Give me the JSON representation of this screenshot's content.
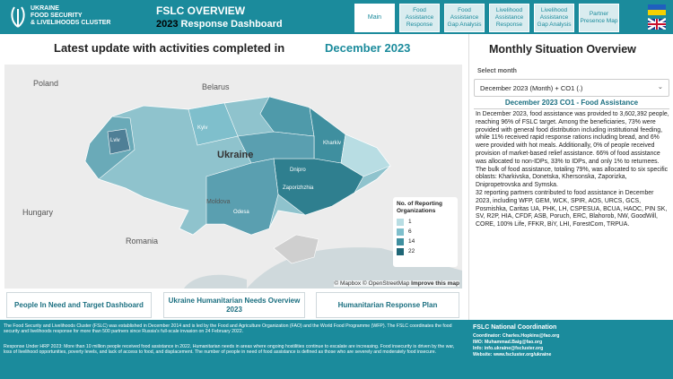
{
  "header": {
    "logo": [
      "UKRAINE",
      "FOOD SECURITY",
      "& LIVELIHOODS CLUSTER"
    ],
    "title": "FSLC OVERVIEW",
    "year": "2023",
    "subtitle": "Response Dashboard",
    "tabs": [
      "Main",
      "Food Assistance Response",
      "Food Assistance Gap Analysis",
      "Livelihood Assistance Response",
      "Livelihood Assistance Gap Analysis",
      "Partner Presence Map"
    ]
  },
  "main": {
    "heading": "Latest update with activities completed in",
    "month": "December 2023",
    "map": {
      "labels": [
        "Poland",
        "Belarus",
        "Ukraine",
        "Hungary",
        "Romania",
        "Moldova",
        "Kyiv",
        "Lviv",
        "Kharkiv",
        "Dnipro",
        "Zaporizhzhia",
        "Odesa"
      ],
      "legend": {
        "title": "No. of Reporting Organizations",
        "items": [
          "1",
          "6",
          "14",
          "22"
        ]
      },
      "attribution": [
        "© Mapbox © OpenStreetMap",
        "Improve this map"
      ]
    },
    "buttons": [
      "People In Need and Target Dashboard",
      "Ukraine Humanitarian Needs Overview 2023",
      "Humanitarian Response Plan"
    ]
  },
  "side": {
    "title": "Monthly Situation Overview",
    "select_label": "Select month",
    "select_value": "December 2023 (Month) + CO1 (.)",
    "section_heading": "December 2023 CO1 - Food Assistance",
    "paragraphs": [
      "In December 2023, food assistance was provided to 3,602,392 people, reaching 96% of FSLC target. Among the beneficiaries, 73% were provided with general food distribution including institutional feeding, while 11% received rapid response rations including bread, and 6% were provided with hot meals. Additionally, 0% of people received provision of market-based relief assistance. 66% of food assistance was allocated to non-IDPs, 33% to IDPs, and only 1% to returnees. The bulk of food assistance, totaling 79%, was allocated to six specific oblasts: Kharkivska, Donetska, Khersonska, Zaporizka, Dnipropetrovska and Symska.",
      "32 reporting partners contributed to food assistance in December 2023, including WFP, GEM, WCK, SPIR, AOS, URCS, GCS, Posmishka, Caritas UA, PHK, LH, CSPESUA, BCUA, HAOC, PIN SK, SV, R2P, HIA, CFDF, ASB, Poruch, ERC, Blahorob, NW, GoodWill, CORE, 100% Life, FFKR, BiY, LHI, ForestCom, TRPUA."
    ]
  },
  "footer": {
    "about": [
      "The Food Security and Livelihoods Cluster (FSLC) was established in December 2014 and is led by the Food and Agriculture Organization (FAO) and the World Food Programme (WFP). The FSLC coordinates the food security and livelihoods response for more than 500 partners since Russia's full-scale invasion on 24 February 2022.",
      "Response Under HRP 2023: More than 10 million people received food assistance in 2022. Humanitarian needs in areas where ongoing hostilities continue to escalate are increasing. Food insecurity is driven by the war, loss of livelihood opportunities, poverty levels, and lack of access to food, and displacement. The number of people in need of food assistance is defined as those who are severely and moderately food insecure."
    ],
    "coordination": {
      "title": "FSLC National Coordination",
      "lines": [
        "Coordinator: Charles.Hopkins@fao.org",
        "IMO: Muhammad.Baig@fao.org",
        "Info: info.ukraine@fscluster.org",
        "Website: www.fscluster.org/ukraine"
      ]
    }
  }
}
